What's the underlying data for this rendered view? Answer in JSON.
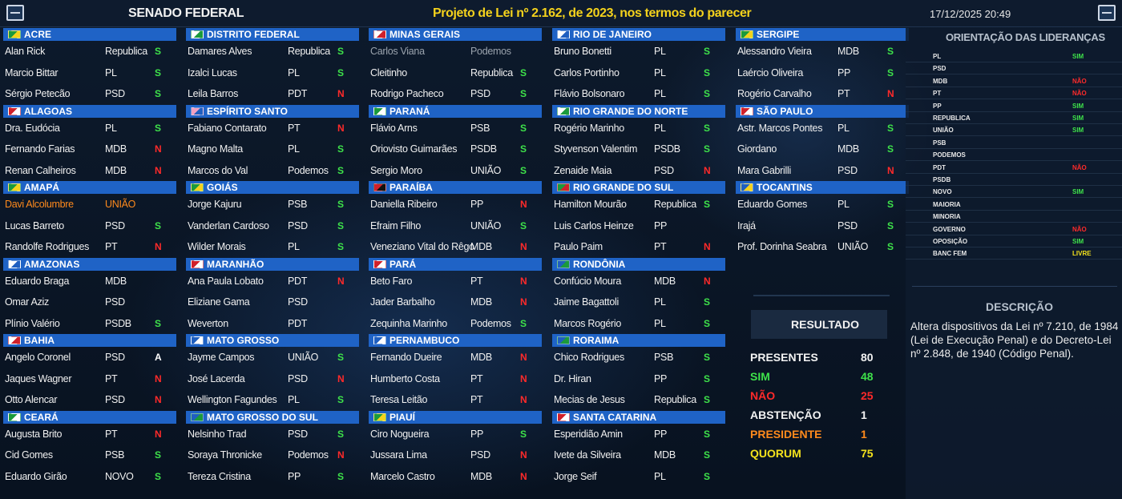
{
  "header": {
    "title": "SENADO FEDERAL",
    "projeto": "Projeto de Lei nº 2.162, de 2023, nos termos do parecer",
    "datetime": "17/12/2025 20:49"
  },
  "columns": [
    {
      "states": [
        {
          "name": "ACRE",
          "flag": [
            "#1b9a3c",
            "#f4d21c"
          ],
          "members": [
            {
              "name": "Alan Rick",
              "party": "Republica",
              "vote": "S"
            },
            {
              "name": "Marcio Bittar",
              "party": "PL",
              "vote": "S"
            },
            {
              "name": "Sérgio Petecão",
              "party": "PSD",
              "vote": "S"
            }
          ]
        },
        {
          "name": "ALAGOAS",
          "flag": [
            "#d0202a",
            "#ffffff"
          ],
          "members": [
            {
              "name": "Dra. Eudócia",
              "party": "PL",
              "vote": "S"
            },
            {
              "name": "Fernando Farias",
              "party": "MDB",
              "vote": "N"
            },
            {
              "name": "Renan Calheiros",
              "party": "MDB",
              "vote": "N"
            }
          ]
        },
        {
          "name": "AMAPÁ",
          "flag": [
            "#1b9a3c",
            "#f4d21c"
          ],
          "members": [
            {
              "name": "Davi Alcolumbre",
              "party": "UNIÃO",
              "vote": "",
              "status": "presidente"
            },
            {
              "name": "Lucas Barreto",
              "party": "PSD",
              "vote": "S"
            },
            {
              "name": "Randolfe Rodrigues",
              "party": "PT",
              "vote": "N"
            }
          ]
        },
        {
          "name": "AMAZONAS",
          "flag": [
            "#ffffff",
            "#1f5fc0"
          ],
          "members": [
            {
              "name": "Eduardo Braga",
              "party": "MDB",
              "vote": ""
            },
            {
              "name": "Omar Aziz",
              "party": "PSD",
              "vote": ""
            },
            {
              "name": "Plínio Valério",
              "party": "PSDB",
              "vote": "S"
            }
          ]
        },
        {
          "name": "BAHIA",
          "flag": [
            "#ffffff",
            "#d0202a"
          ],
          "members": [
            {
              "name": "Angelo Coronel",
              "party": "PSD",
              "vote": "A"
            },
            {
              "name": "Jaques Wagner",
              "party": "PT",
              "vote": "N"
            },
            {
              "name": "Otto Alencar",
              "party": "PSD",
              "vote": "N"
            }
          ]
        },
        {
          "name": "CEARÁ",
          "flag": [
            "#1b9a3c",
            "#ffffff"
          ],
          "members": [
            {
              "name": "Augusta Brito",
              "party": "PT",
              "vote": "N"
            },
            {
              "name": "Cid Gomes",
              "party": "PSB",
              "vote": "S"
            },
            {
              "name": "Eduardo Girão",
              "party": "NOVO",
              "vote": "S"
            }
          ]
        }
      ]
    },
    {
      "states": [
        {
          "name": "DISTRITO FEDERAL",
          "flag": [
            "#ffffff",
            "#1b9a3c"
          ],
          "members": [
            {
              "name": "Damares Alves",
              "party": "Republica",
              "vote": "S"
            },
            {
              "name": "Izalci Lucas",
              "party": "PL",
              "vote": "S"
            },
            {
              "name": "Leila Barros",
              "party": "PDT",
              "vote": "N"
            }
          ]
        },
        {
          "name": "ESPÍRITO SANTO",
          "flag": [
            "#f2a0c0",
            "#1f5fc0"
          ],
          "members": [
            {
              "name": "Fabiano Contarato",
              "party": "PT",
              "vote": "N"
            },
            {
              "name": "Magno Malta",
              "party": "PL",
              "vote": "S"
            },
            {
              "name": "Marcos do Val",
              "party": "Podemos",
              "vote": "S"
            }
          ]
        },
        {
          "name": "GOIÁS",
          "flag": [
            "#1b9a3c",
            "#f4d21c"
          ],
          "members": [
            {
              "name": "Jorge Kajuru",
              "party": "PSB",
              "vote": "S"
            },
            {
              "name": "Vanderlan Cardoso",
              "party": "PSD",
              "vote": "S"
            },
            {
              "name": "Wilder Morais",
              "party": "PL",
              "vote": "S"
            }
          ]
        },
        {
          "name": "MARANHÃO",
          "flag": [
            "#d0202a",
            "#ffffff"
          ],
          "members": [
            {
              "name": "Ana Paula Lobato",
              "party": "PDT",
              "vote": "N"
            },
            {
              "name": "Eliziane Gama",
              "party": "PSD",
              "vote": ""
            },
            {
              "name": "Weverton",
              "party": "PDT",
              "vote": ""
            }
          ]
        },
        {
          "name": "MATO GROSSO",
          "flag": [
            "#1f5fc0",
            "#ffffff"
          ],
          "members": [
            {
              "name": "Jayme Campos",
              "party": "UNIÃO",
              "vote": "S"
            },
            {
              "name": "José Lacerda",
              "party": "PSD",
              "vote": "N"
            },
            {
              "name": "Wellington Fagundes",
              "party": "PL",
              "vote": "S"
            }
          ]
        },
        {
          "name": "MATO GROSSO DO SUL",
          "flag": [
            "#1f5fc0",
            "#1b9a3c"
          ],
          "members": [
            {
              "name": "Nelsinho Trad",
              "party": "PSD",
              "vote": "S"
            },
            {
              "name": "Soraya Thronicke",
              "party": "Podemos",
              "vote": "N"
            },
            {
              "name": "Tereza Cristina",
              "party": "PP",
              "vote": "S"
            }
          ]
        }
      ]
    },
    {
      "states": [
        {
          "name": "MINAS GERAIS",
          "flag": [
            "#ffffff",
            "#d0202a"
          ],
          "members": [
            {
              "name": "Carlos Viana",
              "party": "Podemos",
              "vote": "",
              "status": "ausente"
            },
            {
              "name": "Cleitinho",
              "party": "Republica",
              "vote": "S"
            },
            {
              "name": "Rodrigo Pacheco",
              "party": "PSD",
              "vote": "S"
            }
          ]
        },
        {
          "name": "PARANÁ",
          "flag": [
            "#1b9a3c",
            "#ffffff"
          ],
          "members": [
            {
              "name": "Flávio Arns",
              "party": "PSB",
              "vote": "S"
            },
            {
              "name": "Oriovisto Guimarães",
              "party": "PSDB",
              "vote": "S"
            },
            {
              "name": "Sergio Moro",
              "party": "UNIÃO",
              "vote": "S"
            }
          ]
        },
        {
          "name": "PARAÍBA",
          "flag": [
            "#d0202a",
            "#111111"
          ],
          "members": [
            {
              "name": "Daniella Ribeiro",
              "party": "PP",
              "vote": "N"
            },
            {
              "name": "Efraim Filho",
              "party": "UNIÃO",
              "vote": "S"
            },
            {
              "name": "Veneziano Vital do Rêgo",
              "party": "MDB",
              "vote": "N"
            }
          ]
        },
        {
          "name": "PARÁ",
          "flag": [
            "#d0202a",
            "#ffffff"
          ],
          "members": [
            {
              "name": "Beto Faro",
              "party": "PT",
              "vote": "N"
            },
            {
              "name": "Jader Barbalho",
              "party": "MDB",
              "vote": "N"
            },
            {
              "name": "Zequinha Marinho",
              "party": "Podemos",
              "vote": "S"
            }
          ]
        },
        {
          "name": "PERNAMBUCO",
          "flag": [
            "#1f5fc0",
            "#ffffff"
          ],
          "members": [
            {
              "name": "Fernando Dueire",
              "party": "MDB",
              "vote": "N"
            },
            {
              "name": "Humberto Costa",
              "party": "PT",
              "vote": "N"
            },
            {
              "name": "Teresa Leitão",
              "party": "PT",
              "vote": "N"
            }
          ]
        },
        {
          "name": "PIAUÍ",
          "flag": [
            "#1b9a3c",
            "#f4d21c"
          ],
          "members": [
            {
              "name": "Ciro Nogueira",
              "party": "PP",
              "vote": "S"
            },
            {
              "name": "Jussara Lima",
              "party": "PSD",
              "vote": "N"
            },
            {
              "name": "Marcelo Castro",
              "party": "MDB",
              "vote": "N"
            }
          ]
        }
      ]
    },
    {
      "states": [
        {
          "name": "RIO DE JANEIRO",
          "flag": [
            "#ffffff",
            "#1f5fc0"
          ],
          "members": [
            {
              "name": "Bruno Bonetti",
              "party": "PL",
              "vote": "S"
            },
            {
              "name": "Carlos Portinho",
              "party": "PL",
              "vote": "S"
            },
            {
              "name": "Flávio Bolsonaro",
              "party": "PL",
              "vote": "S"
            }
          ]
        },
        {
          "name": "RIO GRANDE DO NORTE",
          "flag": [
            "#ffffff",
            "#1b9a3c"
          ],
          "members": [
            {
              "name": "Rogério Marinho",
              "party": "PL",
              "vote": "S"
            },
            {
              "name": "Styvenson Valentim",
              "party": "PSDB",
              "vote": "S"
            },
            {
              "name": "Zenaide Maia",
              "party": "PSD",
              "vote": "N"
            }
          ]
        },
        {
          "name": "RIO GRANDE DO SUL",
          "flag": [
            "#1b9a3c",
            "#d0202a"
          ],
          "members": [
            {
              "name": "Hamilton Mourão",
              "party": "Republica",
              "vote": "S"
            },
            {
              "name": "Luis Carlos Heinze",
              "party": "PP",
              "vote": ""
            },
            {
              "name": "Paulo Paim",
              "party": "PT",
              "vote": "N"
            }
          ]
        },
        {
          "name": "RONDÔNIA",
          "flag": [
            "#1f5fc0",
            "#1b9a3c"
          ],
          "members": [
            {
              "name": "Confúcio Moura",
              "party": "MDB",
              "vote": "N"
            },
            {
              "name": "Jaime Bagattoli",
              "party": "PL",
              "vote": "S"
            },
            {
              "name": "Marcos Rogério",
              "party": "PL",
              "vote": "S"
            }
          ]
        },
        {
          "name": "RORAIMA",
          "flag": [
            "#1f5fc0",
            "#1b9a3c"
          ],
          "members": [
            {
              "name": "Chico Rodrigues",
              "party": "PSB",
              "vote": "S"
            },
            {
              "name": "Dr. Hiran",
              "party": "PP",
              "vote": "S"
            },
            {
              "name": "Mecias de Jesus",
              "party": "Republica",
              "vote": "S"
            }
          ]
        },
        {
          "name": "SANTA CATARINA",
          "flag": [
            "#d0202a",
            "#ffffff"
          ],
          "members": [
            {
              "name": "Esperidião Amin",
              "party": "PP",
              "vote": "S"
            },
            {
              "name": "Ivete da Silveira",
              "party": "MDB",
              "vote": "S"
            },
            {
              "name": "Jorge Seif",
              "party": "PL",
              "vote": "S"
            }
          ]
        }
      ]
    },
    {
      "states": [
        {
          "name": "SERGIPE",
          "flag": [
            "#1b9a3c",
            "#f4d21c"
          ],
          "members": [
            {
              "name": "Alessandro Vieira",
              "party": "MDB",
              "vote": "S"
            },
            {
              "name": "Laércio Oliveira",
              "party": "PP",
              "vote": "S"
            },
            {
              "name": "Rogério Carvalho",
              "party": "PT",
              "vote": "N"
            }
          ]
        },
        {
          "name": "SÃO PAULO",
          "flag": [
            "#d0202a",
            "#ffffff"
          ],
          "members": [
            {
              "name": "Astr. Marcos Pontes",
              "party": "PL",
              "vote": "S"
            },
            {
              "name": "Giordano",
              "party": "MDB",
              "vote": "S"
            },
            {
              "name": "Mara Gabrilli",
              "party": "PSD",
              "vote": "N"
            }
          ]
        },
        {
          "name": "TOCANTINS",
          "flag": [
            "#1f5fc0",
            "#f4d21c"
          ],
          "members": [
            {
              "name": "Eduardo Gomes",
              "party": "PL",
              "vote": "S"
            },
            {
              "name": "Irajá",
              "party": "PSD",
              "vote": "S"
            },
            {
              "name": "Prof. Dorinha Seabra",
              "party": "UNIÃO",
              "vote": "S"
            }
          ]
        }
      ]
    }
  ],
  "orientacao": {
    "title": "ORIENTAÇÃO DAS LIDERANÇAS",
    "rows": [
      {
        "name": "PL",
        "value": "SIM"
      },
      {
        "name": "PSD",
        "value": ""
      },
      {
        "name": "MDB",
        "value": "NÃO"
      },
      {
        "name": "PT",
        "value": "NÃO"
      },
      {
        "name": "PP",
        "value": "SIM"
      },
      {
        "name": "REPUBLICA",
        "value": "SIM"
      },
      {
        "name": "UNIÃO",
        "value": "SIM"
      },
      {
        "name": "PSB",
        "value": ""
      },
      {
        "name": "PODEMOS",
        "value": ""
      },
      {
        "name": "PDT",
        "value": "NÃO"
      },
      {
        "name": "PSDB",
        "value": ""
      },
      {
        "name": "NOVO",
        "value": "SIM"
      },
      {
        "name": "MAIORIA",
        "value": ""
      },
      {
        "name": "MINORIA",
        "value": ""
      },
      {
        "name": "GOVERNO",
        "value": "NÃO"
      },
      {
        "name": "OPOSIÇÃO",
        "value": "SIM"
      },
      {
        "name": "BANC FEM",
        "value": "LIVRE"
      }
    ]
  },
  "descricao": {
    "title": "DESCRIÇÃO",
    "text": "Altera dispositivos da Lei nº 7.210, de 1984 (Lei de Execução Penal) e do Decreto-Lei nº 2.848, de 1940 (Código Penal)."
  },
  "resultado": {
    "title": "RESULTADO",
    "lines": [
      {
        "label": "PRESENTES",
        "value": "80",
        "color": "white"
      },
      {
        "label": "SIM",
        "value": "48",
        "color": "green"
      },
      {
        "label": "NÃO",
        "value": "25",
        "color": "red"
      },
      {
        "label": "ABSTENÇÃO",
        "value": "1",
        "color": "white"
      },
      {
        "label": "PRESIDENTE",
        "value": "1",
        "color": "orange"
      },
      {
        "label": "QUORUM",
        "value": "75",
        "color": "yellow"
      }
    ]
  }
}
